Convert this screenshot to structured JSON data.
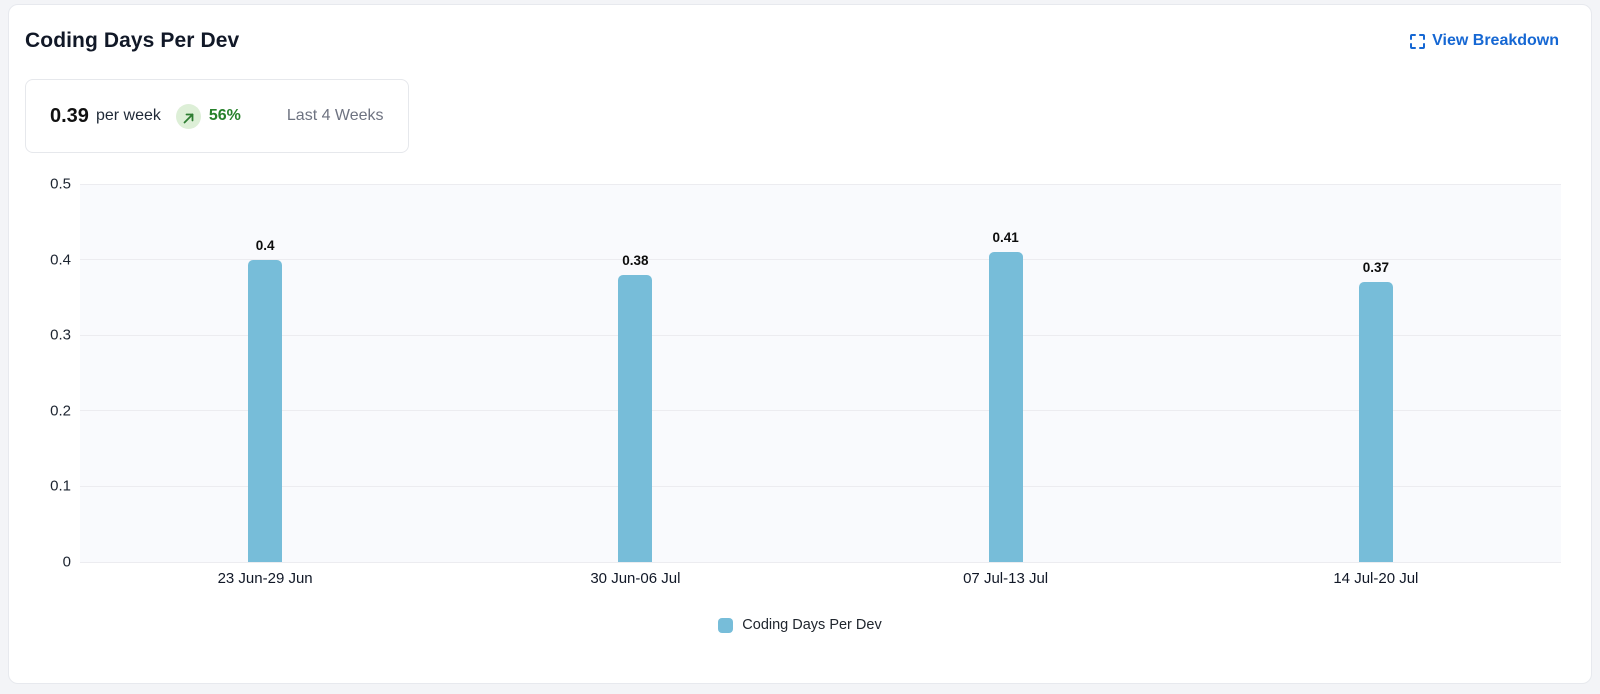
{
  "header": {
    "title": "Coding Days Per Dev",
    "view_breakdown_label": "View Breakdown"
  },
  "summary": {
    "value": "0.39",
    "unit_label": "per week",
    "trend_direction": "up",
    "trend_percent": "56%",
    "period_label": "Last 4 Weeks"
  },
  "chart_data": {
    "type": "bar",
    "title": "Coding Days Per Dev",
    "categories": [
      "23 Jun-29 Jun",
      "30 Jun-06 Jul",
      "07 Jul-13 Jul",
      "14 Jul-20 Jul"
    ],
    "series": [
      {
        "name": "Coding Days Per Dev",
        "values": [
          0.4,
          0.38,
          0.41,
          0.37
        ],
        "value_labels": [
          "0.4",
          "0.38",
          "0.41",
          "0.37"
        ]
      }
    ],
    "xlabel": "",
    "ylabel": "",
    "ylim": [
      0,
      0.5
    ],
    "y_ticks": [
      "0.5",
      "0.4",
      "0.3",
      "0.2",
      "0.1",
      "0"
    ],
    "grid": true,
    "legend_position": "bottom",
    "legend_entries": [
      "Coding Days Per Dev"
    ]
  },
  "colors": {
    "accent_blue": "#1567d3",
    "trend_green": "#27812b",
    "trend_badge_bg": "#ddefd7",
    "bar_blue": "#77bdd9",
    "plot_bg": "#f9fafd",
    "gridline": "#ececf0"
  }
}
